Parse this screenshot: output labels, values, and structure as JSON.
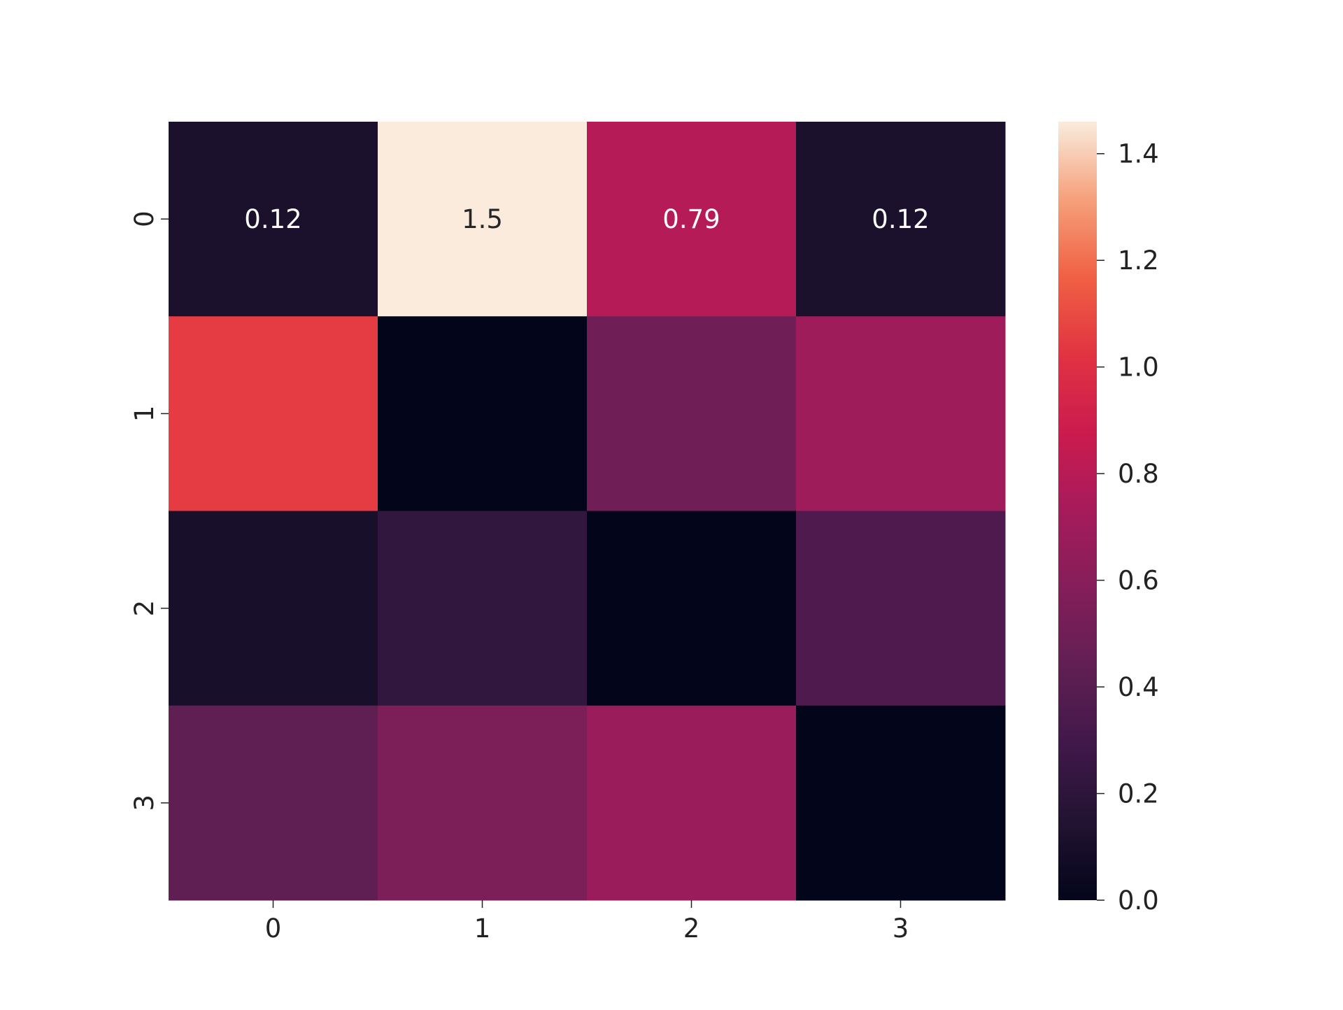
{
  "chart_data": {
    "type": "heatmap",
    "title": "",
    "xlabel": "",
    "ylabel": "",
    "x_tick_labels": [
      "0",
      "1",
      "2",
      "3"
    ],
    "y_tick_labels": [
      "0",
      "1",
      "2",
      "3"
    ],
    "values": [
      [
        0.12,
        1.5,
        0.79,
        0.12
      ],
      [
        1.05,
        0.0,
        0.5,
        0.7
      ],
      [
        0.1,
        0.22,
        0.0,
        0.36
      ],
      [
        0.43,
        0.55,
        0.68,
        0.0
      ]
    ],
    "annotations": [
      [
        "0.12",
        "1.5",
        "0.79",
        "0.12"
      ],
      [
        "",
        "",
        "",
        ""
      ],
      [
        "",
        "",
        "",
        ""
      ],
      [
        "",
        "",
        "",
        ""
      ]
    ],
    "colormap": "rocket",
    "colormap_stops": [
      "#03051a",
      "#221331",
      "#40184a",
      "#611f53",
      "#841e5a",
      "#a61b5b",
      "#cb1b4f",
      "#e13342",
      "#f06043",
      "#f5a07a",
      "#faebdd"
    ],
    "vmin": 0.0,
    "vmax": 1.46,
    "colorbar": {
      "ticks": [
        0.0,
        0.2,
        0.4,
        0.6,
        0.8,
        1.0,
        1.2,
        1.4
      ],
      "tick_labels": [
        "0.0",
        "0.2",
        "0.4",
        "0.6",
        "0.8",
        "1.0",
        "1.2",
        "1.4"
      ],
      "position": "right"
    },
    "grid": false
  }
}
